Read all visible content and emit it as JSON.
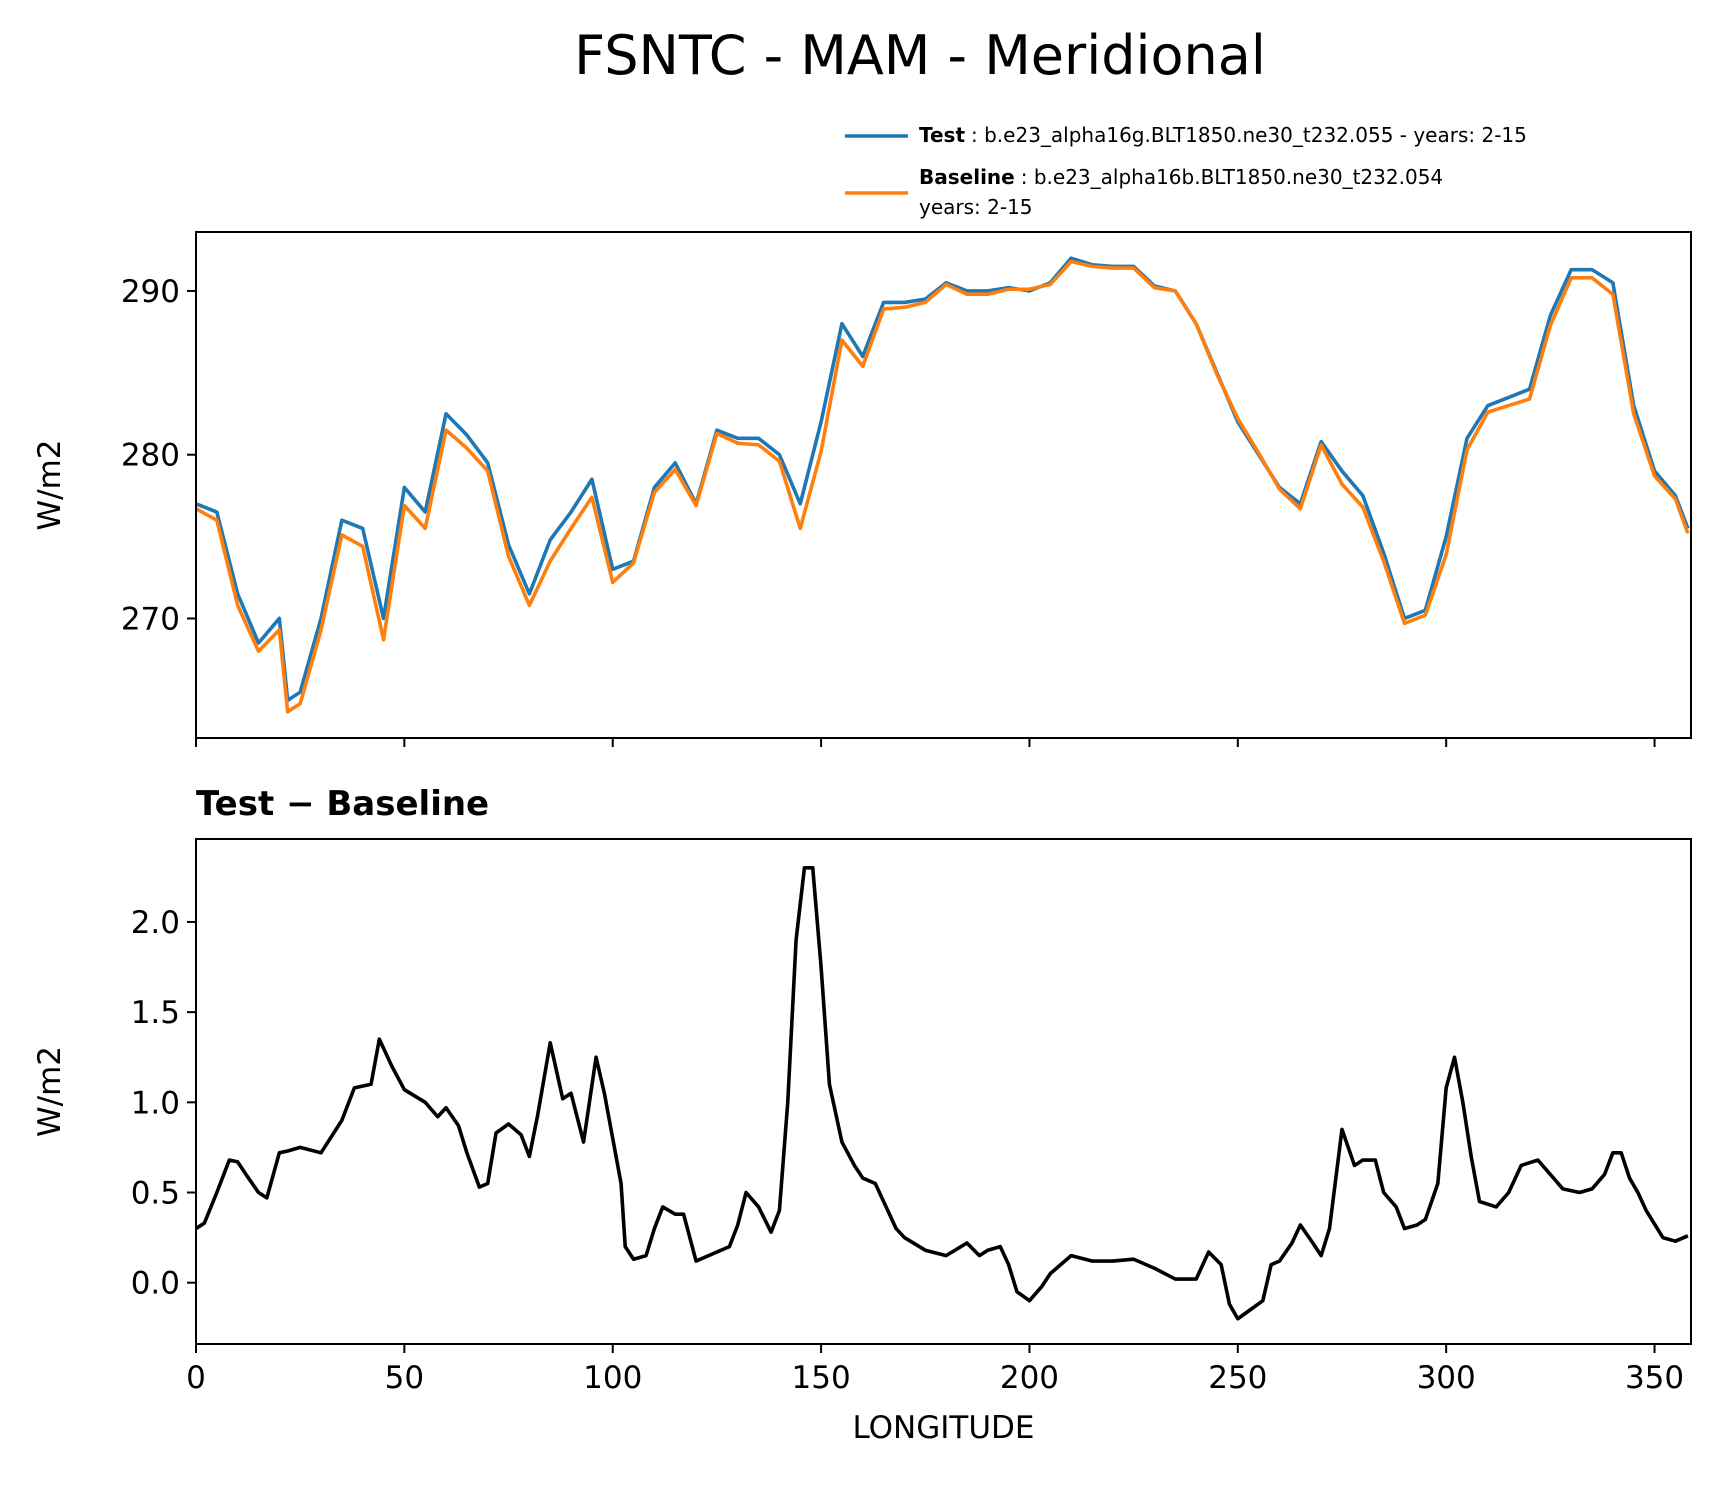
{
  "chart_data": [
    {
      "type": "line",
      "title": "FSNTC - MAM - Meridional",
      "ylabel": "W/m2",
      "x": [
        0,
        5,
        10,
        15,
        20,
        22,
        25,
        30,
        35,
        40,
        45,
        50,
        55,
        60,
        65,
        70,
        75,
        80,
        85,
        90,
        95,
        100,
        105,
        110,
        115,
        120,
        125,
        130,
        135,
        140,
        145,
        150,
        155,
        160,
        165,
        170,
        175,
        180,
        185,
        190,
        195,
        200,
        205,
        210,
        215,
        220,
        225,
        230,
        235,
        240,
        245,
        250,
        255,
        260,
        265,
        270,
        275,
        280,
        285,
        290,
        295,
        300,
        305,
        310,
        315,
        320,
        325,
        330,
        335,
        340,
        345,
        350,
        355,
        358
      ],
      "series": [
        {
          "name": "Test",
          "label": ": b.e23_alpha16g.BLT1850.ne30_t232.055 - years: 2-15",
          "color": "#1f77b4",
          "values": [
            277,
            276.5,
            271.5,
            268.5,
            270,
            265,
            265.5,
            270,
            276,
            275.5,
            270,
            278,
            276.5,
            282.5,
            281.2,
            279.5,
            274.5,
            271.5,
            274.8,
            276.5,
            278.5,
            273,
            273.5,
            278,
            279.5,
            277,
            281.5,
            281,
            281,
            280,
            277,
            282,
            288,
            286,
            289.3,
            289.3,
            289.5,
            290.5,
            290,
            290,
            290.2,
            290,
            290.5,
            292,
            291.6,
            291.5,
            291.5,
            290.3,
            290,
            288,
            285,
            282,
            280,
            278,
            277,
            280.8,
            279,
            277.5,
            274,
            270,
            270.5,
            275,
            281,
            283,
            283.5,
            284,
            288.5,
            291.3,
            291.3,
            290.5,
            283,
            279,
            277.5,
            275.5
          ]
        },
        {
          "name": "Baseline",
          "label_lines": [
            ": b.e23_alpha16b.BLT1850.ne30_t232.054",
            "years: 2-15"
          ],
          "color": "#ff7f0e",
          "values": [
            276.7,
            276,
            270.8,
            268,
            269.3,
            264.3,
            264.8,
            269.3,
            275.1,
            274.4,
            268.7,
            276.9,
            275.5,
            281.5,
            280.4,
            279,
            273.8,
            270.8,
            273.5,
            275.5,
            277.4,
            272.2,
            273.4,
            277.7,
            279.1,
            276.9,
            281.3,
            280.7,
            280.6,
            279.6,
            275.5,
            280.2,
            287,
            285.4,
            288.9,
            289,
            289.3,
            290.4,
            289.8,
            289.8,
            290.1,
            290.1,
            290.4,
            291.8,
            291.5,
            291.4,
            291.4,
            290.2,
            290,
            288,
            284.9,
            282.2,
            280.1,
            277.9,
            276.7,
            280.6,
            278.2,
            276.8,
            273.5,
            269.7,
            270.2,
            273.9,
            280.3,
            282.6,
            283,
            283.4,
            287.9,
            290.8,
            290.8,
            289.8,
            282.5,
            278.7,
            277.3,
            275.2
          ]
        }
      ],
      "xlim": [
        0,
        358.75
      ],
      "xticks": [
        0,
        50,
        100,
        150,
        200,
        250,
        300,
        350
      ],
      "xticklabels": false,
      "ylim": [
        262.7,
        293.6
      ],
      "yticks": [
        270,
        280,
        290
      ],
      "grid": false,
      "legend": "upper right"
    },
    {
      "type": "line",
      "title": "Test − Baseline",
      "ylabel": "W/m2",
      "xlabel": "LONGITUDE",
      "x": [
        0,
        2,
        5,
        8,
        10,
        12,
        15,
        17,
        20,
        22,
        25,
        30,
        35,
        38,
        42,
        44,
        47,
        50,
        55,
        58,
        60,
        63,
        65,
        68,
        70,
        72,
        75,
        78,
        80,
        82,
        85,
        88,
        90,
        93,
        96,
        98,
        100,
        102,
        103,
        105,
        108,
        110,
        112,
        115,
        117,
        120,
        125,
        128,
        130,
        132,
        135,
        138,
        140,
        142,
        144,
        146,
        148,
        150,
        152,
        155,
        158,
        160,
        163,
        165,
        168,
        170,
        175,
        180,
        185,
        188,
        190,
        193,
        195,
        197,
        200,
        203,
        205,
        210,
        215,
        220,
        225,
        230,
        235,
        240,
        243,
        246,
        248,
        250,
        253,
        256,
        258,
        260,
        263,
        265,
        268,
        270,
        272,
        275,
        278,
        280,
        283,
        285,
        288,
        290,
        293,
        295,
        298,
        300,
        302,
        304,
        306,
        308,
        312,
        315,
        318,
        322,
        325,
        328,
        332,
        335,
        338,
        340,
        342,
        344,
        346,
        348,
        352,
        355,
        358
      ],
      "series": [
        {
          "name": "Test − Baseline",
          "color": "#000000",
          "values": [
            0.3,
            0.33,
            0.5,
            0.68,
            0.67,
            0.6,
            0.5,
            0.47,
            0.72,
            0.73,
            0.75,
            0.72,
            0.9,
            1.08,
            1.1,
            1.35,
            1.2,
            1.07,
            1.0,
            0.92,
            0.97,
            0.87,
            0.72,
            0.53,
            0.55,
            0.83,
            0.88,
            0.82,
            0.7,
            0.93,
            1.33,
            1.02,
            1.05,
            0.78,
            1.25,
            1.05,
            0.8,
            0.55,
            0.2,
            0.13,
            0.15,
            0.3,
            0.42,
            0.38,
            0.38,
            0.12,
            0.17,
            0.2,
            0.32,
            0.5,
            0.42,
            0.28,
            0.4,
            1.0,
            1.9,
            2.3,
            2.3,
            1.75,
            1.1,
            0.78,
            0.65,
            0.58,
            0.55,
            0.45,
            0.3,
            0.25,
            0.18,
            0.15,
            0.22,
            0.15,
            0.18,
            0.2,
            0.1,
            -0.05,
            -0.1,
            -0.02,
            0.05,
            0.15,
            0.12,
            0.12,
            0.13,
            0.08,
            0.02,
            0.02,
            0.17,
            0.1,
            -0.12,
            -0.2,
            -0.15,
            -0.1,
            0.1,
            0.12,
            0.22,
            0.32,
            0.22,
            0.15,
            0.3,
            0.85,
            0.65,
            0.68,
            0.68,
            0.5,
            0.42,
            0.3,
            0.32,
            0.35,
            0.55,
            1.08,
            1.25,
            1.0,
            0.7,
            0.45,
            0.42,
            0.5,
            0.65,
            0.68,
            0.6,
            0.52,
            0.5,
            0.52,
            0.6,
            0.72,
            0.72,
            0.58,
            0.5,
            0.4,
            0.25,
            0.23,
            0.26
          ]
        }
      ],
      "xlim": [
        0,
        358.75
      ],
      "xticks": [
        0,
        50,
        100,
        150,
        200,
        250,
        300,
        350
      ],
      "xticklabels": true,
      "ylim": [
        -0.34,
        2.46
      ],
      "yticks": [
        {
          "value": 0,
          "label": "0.0"
        },
        0.5,
        {
          "value": 1,
          "label": "1.0"
        },
        1.5,
        {
          "value": 2,
          "label": "2.0"
        }
      ],
      "grid": false
    }
  ]
}
